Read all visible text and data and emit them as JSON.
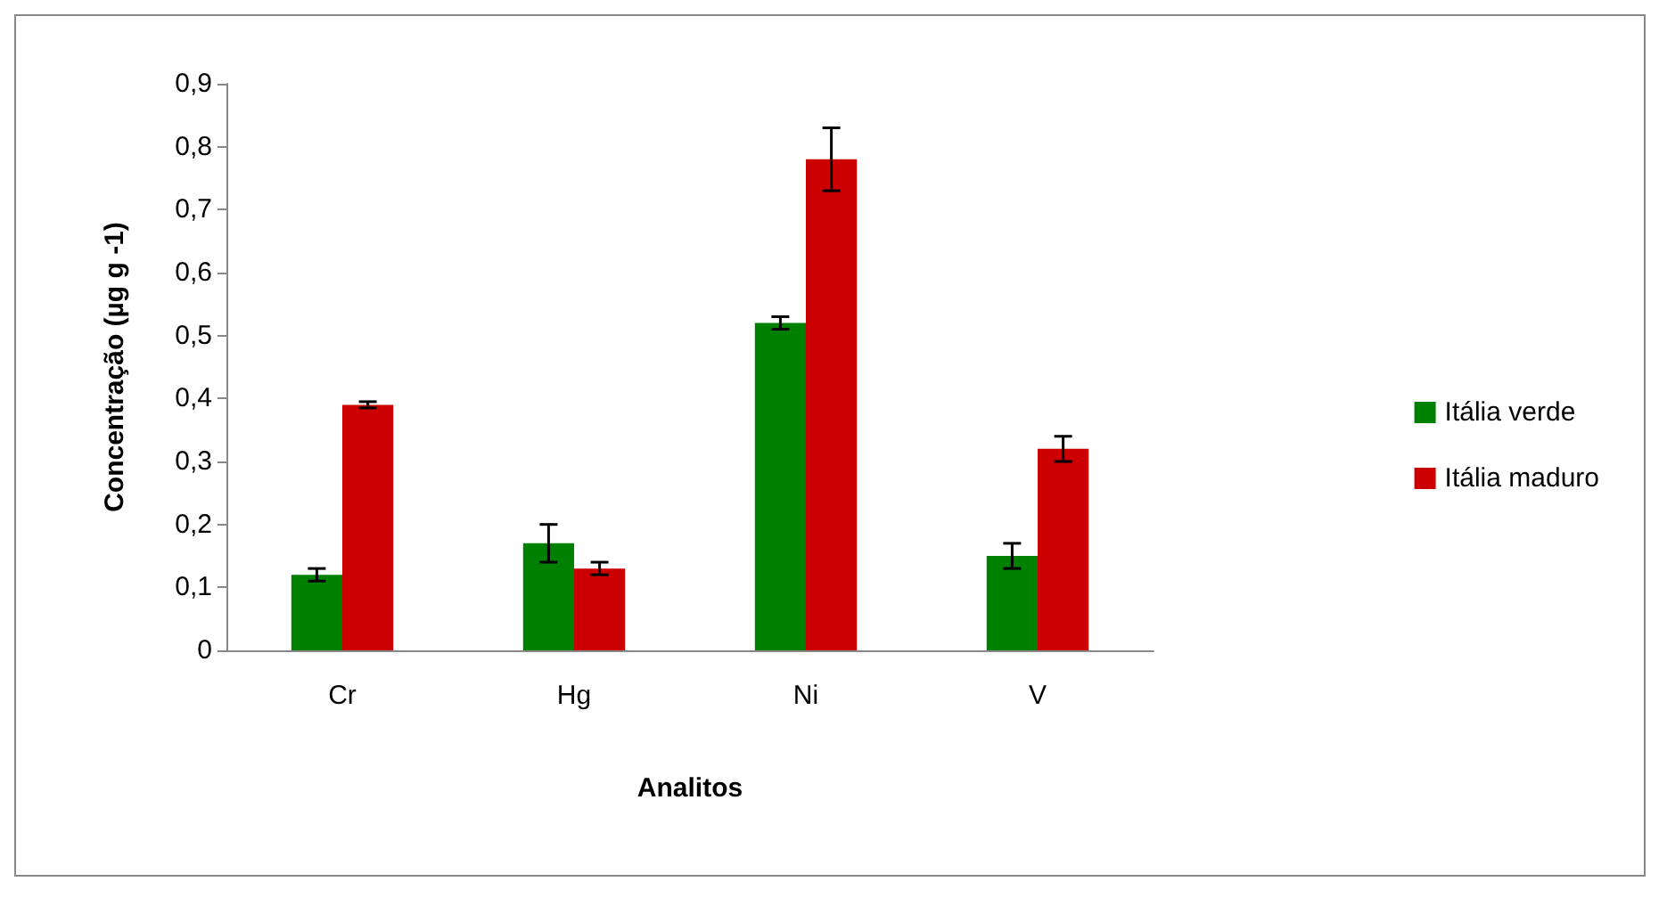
{
  "chart_data": {
    "type": "bar",
    "xlabel": "Analitos",
    "ylabel": "Concentração (µg g -1)",
    "categories": [
      "Cr",
      "Hg",
      "Ni",
      "V"
    ],
    "series": [
      {
        "name": "Itália verde",
        "color": "#008000",
        "values": [
          0.12,
          0.17,
          0.52,
          0.15
        ],
        "errors": [
          0.01,
          0.03,
          0.01,
          0.02
        ]
      },
      {
        "name": "Itália maduro",
        "color": "#cc0000",
        "values": [
          0.39,
          0.13,
          0.78,
          0.32
        ],
        "errors": [
          0.005,
          0.01,
          0.05,
          0.02
        ]
      }
    ],
    "ylim": [
      0,
      0.9
    ],
    "yticks": [
      {
        "value": 0,
        "label": "0"
      },
      {
        "value": 0.1,
        "label": "0,1"
      },
      {
        "value": 0.2,
        "label": "0,2"
      },
      {
        "value": 0.3,
        "label": "0,3"
      },
      {
        "value": 0.4,
        "label": "0,4"
      },
      {
        "value": 0.5,
        "label": "0,5"
      },
      {
        "value": 0.6,
        "label": "0,6"
      },
      {
        "value": 0.7,
        "label": "0,7"
      },
      {
        "value": 0.8,
        "label": "0,8"
      },
      {
        "value": 0.9,
        "label": "0,9"
      }
    ],
    "grid": false,
    "legend": "right"
  }
}
